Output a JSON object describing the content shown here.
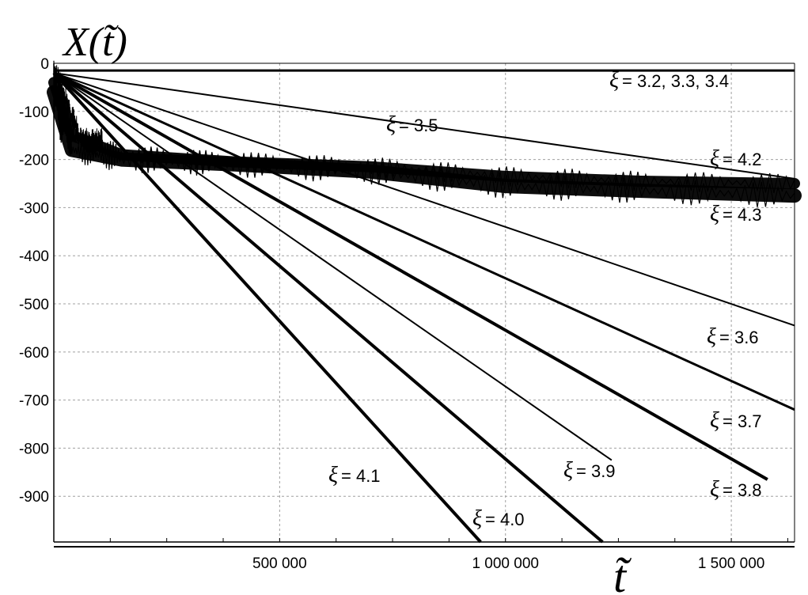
{
  "chart_data": {
    "type": "line",
    "ylabel": "X(t̃)",
    "xlabel": "t̃",
    "xlim": [
      0,
      1640000
    ],
    "ylim": [
      -995,
      0
    ],
    "x_ticks": [
      {
        "value": 500000,
        "label": "500 000"
      },
      {
        "value": 1000000,
        "label": "1 000 000"
      },
      {
        "value": 1500000,
        "label": "1 500 000"
      }
    ],
    "x_minor_step": 125000,
    "y_ticks": [
      {
        "value": 0,
        "label": "0"
      },
      {
        "value": -100,
        "label": "-100"
      },
      {
        "value": -200,
        "label": "-200"
      },
      {
        "value": -300,
        "label": "-300"
      },
      {
        "value": -400,
        "label": "-400"
      },
      {
        "value": -500,
        "label": "-500"
      },
      {
        "value": -600,
        "label": "-600"
      },
      {
        "value": -700,
        "label": "-700"
      },
      {
        "value": -800,
        "label": "-800"
      },
      {
        "value": -900,
        "label": "-900"
      }
    ],
    "grid": true,
    "series": [
      {
        "label": "ξ = 3.2, 3.3, 3.4",
        "x": [
          0,
          1640000
        ],
        "y": [
          -15,
          -15
        ],
        "thick": 3
      },
      {
        "label": "ξ = 3.5",
        "x": [
          0,
          1640000
        ],
        "y": [
          -20,
          -240
        ],
        "thick": 2
      },
      {
        "label": "ξ = 3.6",
        "x": [
          0,
          1640000
        ],
        "y": [
          -20,
          -545
        ],
        "thick": 2
      },
      {
        "label": "ξ = 3.7",
        "x": [
          0,
          1640000
        ],
        "y": [
          -20,
          -720
        ],
        "thick": 3
      },
      {
        "label": "ξ = 3.8",
        "x": [
          0,
          1580000
        ],
        "y": [
          -20,
          -865
        ],
        "thick": 4
      },
      {
        "label": "ξ = 3.9",
        "x": [
          0,
          1235000
        ],
        "y": [
          -20,
          -825
        ],
        "thick": 2
      },
      {
        "label": "ξ = 4.0",
        "x": [
          0,
          1215000
        ],
        "y": [
          -20,
          -995
        ],
        "thick": 4
      },
      {
        "label": "ξ = 4.1",
        "x": [
          0,
          945000
        ],
        "y": [
          -20,
          -995
        ],
        "thick": 4
      },
      {
        "label": "ξ = 4.2",
        "x": [
          0,
          40000,
          150000,
          400000,
          700000,
          1000000,
          1300000,
          1640000
        ],
        "y": [
          -40,
          -150,
          -190,
          -205,
          -215,
          -235,
          -245,
          -250
        ],
        "band": 14
      },
      {
        "label": "ξ = 4.3",
        "x": [
          0,
          40000,
          150000,
          400000,
          700000,
          1000000,
          1300000,
          1640000
        ],
        "y": [
          -60,
          -180,
          -200,
          -210,
          -225,
          -255,
          -265,
          -275
        ],
        "band": 18
      }
    ],
    "annotations": [
      {
        "prefix": "ξ",
        "text": "= 3.2, 3.3, 3.4"
      },
      {
        "prefix": "ξ",
        "text": "= 3.5"
      },
      {
        "prefix": "ξ",
        "text": "= 4.2"
      },
      {
        "prefix": "ξ",
        "text": "= 4.3"
      },
      {
        "prefix": "ξ",
        "text": "= 3.6"
      },
      {
        "prefix": "ξ",
        "text": "= 3.7"
      },
      {
        "prefix": "ξ",
        "text": "= 3.9"
      },
      {
        "prefix": "ξ",
        "text": "= 3.8"
      },
      {
        "prefix": "ξ",
        "text": "= 4.1"
      },
      {
        "prefix": "ξ",
        "text": "= 4.0"
      }
    ]
  }
}
